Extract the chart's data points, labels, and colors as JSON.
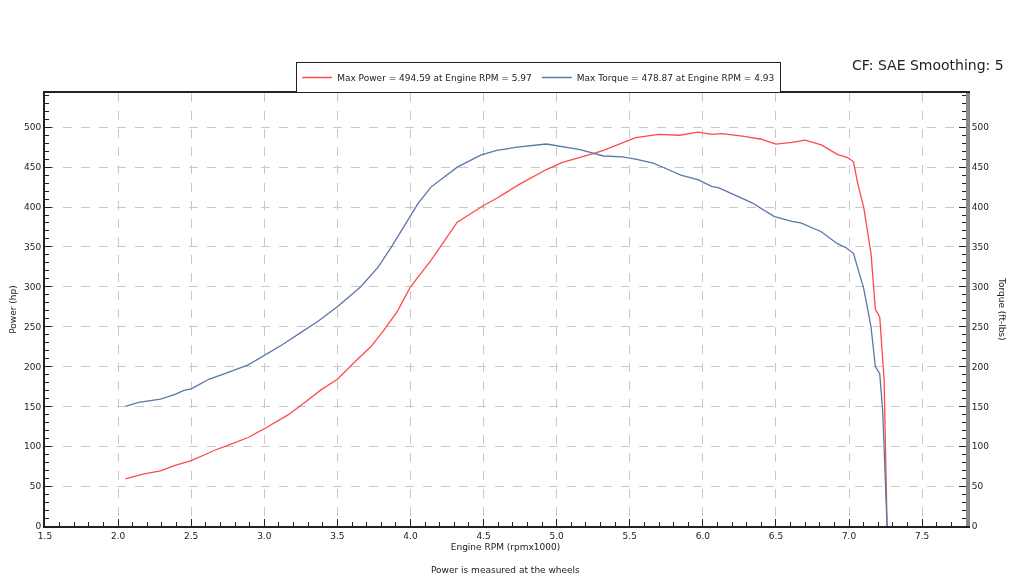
{
  "chart_data": {
    "type": "line",
    "subtitle": "CF: SAE Smoothing: 5",
    "xlabel": "Engine RPM (rpmx1000)",
    "ylabel": "Power (hp)",
    "y2label": "Torque (ft-lbs)",
    "annotations": [
      "Power is measured at the wheels"
    ],
    "series": [
      {
        "name": "Max Power = 494.59 at Engine RPM = 5.97",
        "color": "#ff4a4a",
        "x": [
          2.05,
          2.17,
          2.29,
          2.39,
          2.5,
          2.6,
          2.66,
          2.75,
          2.89,
          3.0,
          3.16,
          3.27,
          3.39,
          3.5,
          3.61,
          3.73,
          3.82,
          3.91,
          3.95,
          4.0,
          4.14,
          4.32,
          4.5,
          4.59,
          4.75,
          4.93,
          5.04,
          5.25,
          5.32,
          5.54,
          5.7,
          5.84,
          5.97,
          6.06,
          6.13,
          6.27,
          6.4,
          6.5,
          6.61,
          6.7,
          6.81,
          6.92,
          6.99,
          7.03,
          7.06,
          7.1,
          7.15,
          7.18,
          7.21,
          7.24,
          7.26
        ],
        "values": [
          59,
          65,
          69,
          76,
          82,
          90,
          95,
          101,
          111,
          122,
          139,
          154,
          171,
          184,
          204,
          225,
          246,
          269,
          283,
          300,
          333,
          381,
          402,
          411,
          429,
          447,
          456,
          467,
          471,
          487,
          491,
          490,
          494,
          491,
          492,
          489,
          485,
          479,
          481,
          484,
          478,
          466,
          462,
          457,
          429,
          400,
          342,
          272,
          262,
          183,
          0
        ]
      },
      {
        "name": "Max Torque = 478.87 at Engine RPM = 4.93",
        "color": "#5a78a8",
        "axis": "y2",
        "x": [
          2.05,
          2.14,
          2.29,
          2.39,
          2.45,
          2.5,
          2.56,
          2.62,
          2.73,
          2.89,
          3.0,
          3.12,
          3.27,
          3.37,
          3.5,
          3.66,
          3.78,
          3.87,
          3.98,
          4.05,
          4.14,
          4.32,
          4.48,
          4.59,
          4.73,
          4.93,
          5.16,
          5.32,
          5.45,
          5.54,
          5.66,
          5.75,
          5.85,
          5.97,
          6.06,
          6.11,
          6.22,
          6.34,
          6.4,
          6.49,
          6.61,
          6.67,
          6.81,
          6.92,
          6.98,
          7.03,
          7.1,
          7.15,
          7.18,
          7.21,
          7.23,
          7.26
        ],
        "values": [
          150,
          155,
          159,
          165,
          170,
          172,
          178,
          184,
          191,
          202,
          214,
          227,
          245,
          257,
          275,
          300,
          325,
          350,
          383,
          404,
          425,
          450,
          465,
          471,
          475,
          479,
          472,
          464,
          463,
          460,
          455,
          448,
          440,
          434,
          426,
          424,
          415,
          405,
          398,
          388,
          382,
          380,
          369,
          354,
          349,
          342,
          298,
          250,
          200,
          191,
          145,
          0
        ]
      }
    ],
    "xlim": [
      1.5,
      7.8
    ],
    "xticks": [
      {
        "value": 1.5,
        "label": "1.5"
      },
      {
        "value": 1.6,
        "label": null
      },
      {
        "value": 1.7,
        "label": null
      },
      {
        "value": 1.8,
        "label": null
      },
      {
        "value": 1.9,
        "label": null
      },
      {
        "value": 2.0,
        "label": "2.0"
      },
      {
        "value": 2.1,
        "label": null
      },
      {
        "value": 2.2,
        "label": null
      },
      {
        "value": 2.3,
        "label": null
      },
      {
        "value": 2.4,
        "label": null
      },
      {
        "value": 2.5,
        "label": "2.5"
      },
      {
        "value": 2.6,
        "label": null
      },
      {
        "value": 2.7,
        "label": null
      },
      {
        "value": 2.8,
        "label": null
      },
      {
        "value": 2.9,
        "label": null
      },
      {
        "value": 3.0,
        "label": "3.0"
      },
      {
        "value": 3.1,
        "label": null
      },
      {
        "value": 3.2,
        "label": null
      },
      {
        "value": 3.3,
        "label": null
      },
      {
        "value": 3.4,
        "label": null
      },
      {
        "value": 3.5,
        "label": "3.5"
      },
      {
        "value": 3.6,
        "label": null
      },
      {
        "value": 3.7,
        "label": null
      },
      {
        "value": 3.8,
        "label": null
      },
      {
        "value": 3.9,
        "label": null
      },
      {
        "value": 4.0,
        "label": "4.0"
      },
      {
        "value": 4.1,
        "label": null
      },
      {
        "value": 4.2,
        "label": null
      },
      {
        "value": 4.3,
        "label": null
      },
      {
        "value": 4.4,
        "label": null
      },
      {
        "value": 4.5,
        "label": "4.5"
      },
      {
        "value": 4.6,
        "label": null
      },
      {
        "value": 4.7,
        "label": null
      },
      {
        "value": 4.8,
        "label": null
      },
      {
        "value": 4.9,
        "label": null
      },
      {
        "value": 5.0,
        "label": "5.0"
      },
      {
        "value": 5.1,
        "label": null
      },
      {
        "value": 5.2,
        "label": null
      },
      {
        "value": 5.3,
        "label": null
      },
      {
        "value": 5.4,
        "label": null
      },
      {
        "value": 5.5,
        "label": "5.5"
      },
      {
        "value": 5.6,
        "label": null
      },
      {
        "value": 5.7,
        "label": null
      },
      {
        "value": 5.8,
        "label": null
      },
      {
        "value": 5.9,
        "label": null
      },
      {
        "value": 6.0,
        "label": "6.0"
      },
      {
        "value": 6.1,
        "label": null
      },
      {
        "value": 6.2,
        "label": null
      },
      {
        "value": 6.3,
        "label": null
      },
      {
        "value": 6.4,
        "label": null
      },
      {
        "value": 6.5,
        "label": "6.5"
      },
      {
        "value": 6.6,
        "label": null
      },
      {
        "value": 6.7,
        "label": null
      },
      {
        "value": 6.8,
        "label": null
      },
      {
        "value": 6.9,
        "label": null
      },
      {
        "value": 7.0,
        "label": "7.0"
      },
      {
        "value": 7.1,
        "label": null
      },
      {
        "value": 7.2,
        "label": null
      },
      {
        "value": 7.3,
        "label": null
      },
      {
        "value": 7.4,
        "label": null
      },
      {
        "value": 7.5,
        "label": "7.5"
      },
      {
        "value": 7.6,
        "label": null
      },
      {
        "value": 7.7,
        "label": null
      }
    ],
    "ylim": [
      0,
      543
    ],
    "yticks": [
      0,
      {
        "value": 10,
        "label": null
      },
      {
        "value": 20,
        "label": null
      },
      {
        "value": 30,
        "label": null
      },
      {
        "value": 40,
        "label": null
      },
      50,
      {
        "value": 60,
        "label": null
      },
      {
        "value": 70,
        "label": null
      },
      {
        "value": 80,
        "label": null
      },
      {
        "value": 90,
        "label": null
      },
      100,
      {
        "value": 110,
        "label": null
      },
      {
        "value": 120,
        "label": null
      },
      {
        "value": 130,
        "label": null
      },
      {
        "value": 140,
        "label": null
      },
      150,
      {
        "value": 160,
        "label": null
      },
      {
        "value": 170,
        "label": null
      },
      {
        "value": 180,
        "label": null
      },
      {
        "value": 190,
        "label": null
      },
      200,
      {
        "value": 210,
        "label": null
      },
      {
        "value": 220,
        "label": null
      },
      {
        "value": 230,
        "label": null
      },
      {
        "value": 240,
        "label": null
      },
      250,
      {
        "value": 260,
        "label": null
      },
      {
        "value": 270,
        "label": null
      },
      {
        "value": 280,
        "label": null
      },
      {
        "value": 290,
        "label": null
      },
      300,
      {
        "value": 310,
        "label": null
      },
      {
        "value": 320,
        "label": null
      },
      {
        "value": 330,
        "label": null
      },
      {
        "value": 340,
        "label": null
      },
      350,
      {
        "value": 360,
        "label": null
      },
      {
        "value": 370,
        "label": null
      },
      {
        "value": 380,
        "label": null
      },
      {
        "value": 390,
        "label": null
      },
      400,
      {
        "value": 410,
        "label": null
      },
      {
        "value": 420,
        "label": null
      },
      {
        "value": 430,
        "label": null
      },
      {
        "value": 440,
        "label": null
      },
      450,
      {
        "value": 460,
        "label": null
      },
      {
        "value": 470,
        "label": null
      },
      {
        "value": 480,
        "label": null
      },
      {
        "value": 490,
        "label": null
      },
      500,
      {
        "value": 510,
        "label": null
      },
      {
        "value": 520,
        "label": null
      },
      {
        "value": 530,
        "label": null
      },
      {
        "value": 540,
        "label": null
      }
    ],
    "y2lim": [
      0,
      543
    ],
    "y2ticks": [
      0,
      {
        "value": 10,
        "label": null
      },
      {
        "value": 20,
        "label": null
      },
      {
        "value": 30,
        "label": null
      },
      {
        "value": 40,
        "label": null
      },
      50,
      {
        "value": 60,
        "label": null
      },
      {
        "value": 70,
        "label": null
      },
      {
        "value": 80,
        "label": null
      },
      {
        "value": 90,
        "label": null
      },
      100,
      {
        "value": 110,
        "label": null
      },
      {
        "value": 120,
        "label": null
      },
      {
        "value": 130,
        "label": null
      },
      {
        "value": 140,
        "label": null
      },
      150,
      {
        "value": 160,
        "label": null
      },
      {
        "value": 170,
        "label": null
      },
      {
        "value": 180,
        "label": null
      },
      {
        "value": 190,
        "label": null
      },
      200,
      {
        "value": 210,
        "label": null
      },
      {
        "value": 220,
        "label": null
      },
      {
        "value": 230,
        "label": null
      },
      {
        "value": 240,
        "label": null
      },
      250,
      {
        "value": 260,
        "label": null
      },
      {
        "value": 270,
        "label": null
      },
      {
        "value": 280,
        "label": null
      },
      {
        "value": 290,
        "label": null
      },
      300,
      {
        "value": 310,
        "label": null
      },
      {
        "value": 320,
        "label": null
      },
      {
        "value": 330,
        "label": null
      },
      {
        "value": 340,
        "label": null
      },
      350,
      {
        "value": 360,
        "label": null
      },
      {
        "value": 370,
        "label": null
      },
      {
        "value": 380,
        "label": null
      },
      {
        "value": 390,
        "label": null
      },
      400,
      {
        "value": 410,
        "label": null
      },
      {
        "value": 420,
        "label": null
      },
      {
        "value": 430,
        "label": null
      },
      {
        "value": 440,
        "label": null
      },
      450,
      {
        "value": 460,
        "label": null
      },
      {
        "value": 470,
        "label": null
      },
      {
        "value": 480,
        "label": null
      },
      {
        "value": 490,
        "label": null
      },
      500,
      {
        "value": 510,
        "label": null
      },
      {
        "value": 520,
        "label": null
      },
      {
        "value": 530,
        "label": null
      },
      {
        "value": 540,
        "label": null
      }
    ],
    "grid": true,
    "legend": "top",
    "marker": "none",
    "line_style": "solid"
  }
}
